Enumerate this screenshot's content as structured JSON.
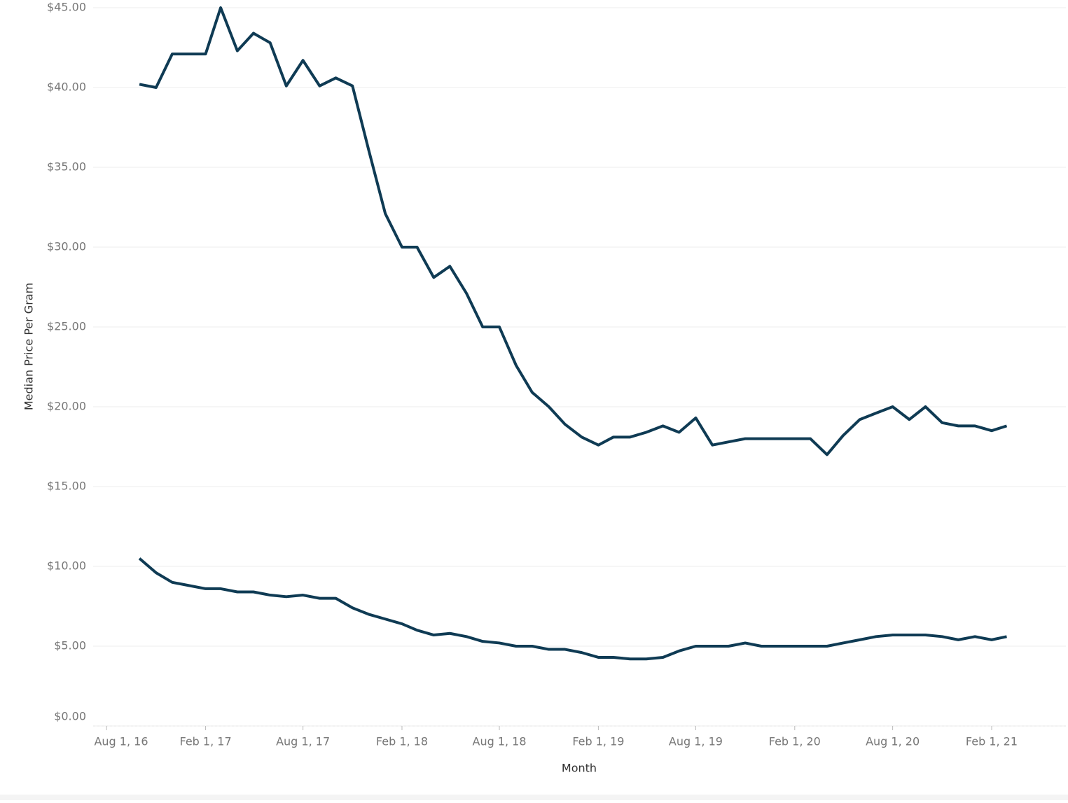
{
  "chart_data": {
    "type": "line",
    "x_label": "Month",
    "y_label": "Median Price Per Gram",
    "x": [
      "2016-10-01",
      "2016-11-01",
      "2016-12-01",
      "2017-01-01",
      "2017-02-01",
      "2017-03-01",
      "2017-04-01",
      "2017-05-01",
      "2017-06-01",
      "2017-07-01",
      "2017-08-01",
      "2017-09-01",
      "2017-10-01",
      "2017-11-01",
      "2017-12-01",
      "2018-01-01",
      "2018-02-01",
      "2018-03-01",
      "2018-04-01",
      "2018-05-01",
      "2018-06-01",
      "2018-07-01",
      "2018-08-01",
      "2018-09-01",
      "2018-10-01",
      "2018-11-01",
      "2018-12-01",
      "2019-01-01",
      "2019-02-01",
      "2019-03-01",
      "2019-04-01",
      "2019-05-01",
      "2019-06-01",
      "2019-07-01",
      "2019-08-01",
      "2019-09-01",
      "2019-10-01",
      "2019-11-01",
      "2019-12-01",
      "2020-01-01",
      "2020-02-01",
      "2020-03-01",
      "2020-04-01",
      "2020-05-01",
      "2020-06-01",
      "2020-07-01",
      "2020-08-01",
      "2020-09-01",
      "2020-10-01",
      "2020-11-01",
      "2020-12-01",
      "2021-01-01",
      "2021-02-01",
      "2021-03-01"
    ],
    "series": [
      {
        "color": "#0f3b54",
        "values": [
          40.2,
          40.0,
          42.1,
          42.1,
          42.1,
          45.0,
          42.3,
          43.4,
          42.8,
          40.1,
          41.7,
          40.1,
          40.6,
          40.1,
          36.1,
          32.1,
          30.0,
          30.0,
          28.1,
          28.8,
          27.1,
          25.0,
          25.0,
          22.6,
          20.9,
          20.0,
          18.9,
          18.1,
          17.6,
          18.1,
          18.1,
          18.4,
          18.8,
          18.4,
          19.3,
          17.6,
          17.8,
          18.0,
          18.0,
          18.0,
          18.0,
          18.0,
          17.0,
          18.2,
          19.2,
          19.6,
          20.0,
          19.2,
          20.0,
          19.0,
          18.8,
          18.8,
          18.5,
          18.8
        ]
      },
      {
        "color": "#0f3b54",
        "values": [
          10.5,
          9.6,
          9.0,
          8.8,
          8.6,
          8.6,
          8.4,
          8.4,
          8.2,
          8.1,
          8.2,
          8.0,
          8.0,
          7.4,
          7.0,
          6.7,
          6.4,
          6.0,
          5.7,
          5.8,
          5.6,
          5.3,
          5.2,
          5.0,
          5.0,
          4.8,
          4.8,
          4.6,
          4.3,
          4.3,
          4.2,
          4.2,
          4.3,
          4.7,
          5.0,
          5.0,
          5.0,
          5.2,
          5.0,
          5.0,
          5.0,
          5.0,
          5.0,
          5.2,
          5.4,
          5.6,
          5.7,
          5.7,
          5.7,
          5.6,
          5.4,
          5.6,
          5.4,
          5.6
        ]
      }
    ],
    "xlim": [
      "2016-07-07",
      "2021-06-19"
    ],
    "xticks": [
      {
        "value": "2016-08-01",
        "label": "Aug 1, 16"
      },
      {
        "value": "2017-02-01",
        "label": "Feb 1, 17"
      },
      {
        "value": "2017-08-01",
        "label": "Aug 1, 17"
      },
      {
        "value": "2018-02-01",
        "label": "Feb 1, 18"
      },
      {
        "value": "2018-08-01",
        "label": "Aug 1, 18"
      },
      {
        "value": "2019-02-01",
        "label": "Feb 1, 19"
      },
      {
        "value": "2019-08-01",
        "label": "Aug 1, 19"
      },
      {
        "value": "2020-02-01",
        "label": "Feb 1, 20"
      },
      {
        "value": "2020-08-01",
        "label": "Aug 1, 20"
      },
      {
        "value": "2021-02-01",
        "label": "Feb 1, 21"
      }
    ],
    "ylim": [
      0,
      45
    ],
    "yticks": [
      {
        "value": 0,
        "label": "$0.00"
      },
      {
        "value": 5,
        "label": "$5.00"
      },
      {
        "value": 10,
        "label": "$10.00"
      },
      {
        "value": 15,
        "label": "$15.00"
      },
      {
        "value": 20,
        "label": "$20.00"
      },
      {
        "value": 25,
        "label": "$25.00"
      },
      {
        "value": 30,
        "label": "$30.00"
      },
      {
        "value": 35,
        "label": "$35.00"
      },
      {
        "value": 40,
        "label": "$40.00"
      },
      {
        "value": 45,
        "label": "$45.00"
      }
    ],
    "grid": true
  }
}
